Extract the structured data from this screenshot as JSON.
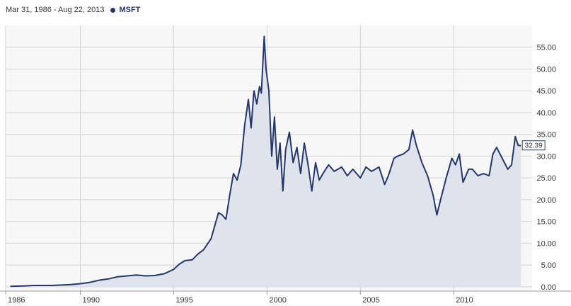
{
  "header": {
    "date_range": "Mar 31, 1986 - Aug 22, 2013",
    "series_name": "MSFT"
  },
  "colors": {
    "line": "#23376b",
    "area": "#dde2ea",
    "grid": "#d3d3d3",
    "plot_bg": "#f7f7f7"
  },
  "chart_data": {
    "type": "area",
    "title": "",
    "xlabel": "",
    "ylabel": "",
    "x_ticks": [
      "1986",
      "1990",
      "1995",
      "2000",
      "2005",
      "2010"
    ],
    "y_ticks": [
      "0.00",
      "5.00",
      "10.00",
      "15.00",
      "20.00",
      "25.00",
      "30.00",
      "35.00",
      "40.00",
      "45.00",
      "50.00",
      "55.00"
    ],
    "ylim": [
      -1,
      60
    ],
    "xlim": [
      1986.0,
      2014.2
    ],
    "last_value_label": "32.39",
    "grid": true,
    "series": [
      {
        "name": "MSFT",
        "x": [
          1986.25,
          1987.0,
          1987.5,
          1988.0,
          1988.5,
          1989.0,
          1989.5,
          1990.0,
          1990.5,
          1991.0,
          1991.5,
          1992.0,
          1992.5,
          1993.0,
          1993.5,
          1994.0,
          1994.5,
          1995.0,
          1995.3,
          1995.6,
          1996.0,
          1996.3,
          1996.6,
          1997.0,
          1997.2,
          1997.4,
          1997.6,
          1997.8,
          1998.0,
          1998.2,
          1998.4,
          1998.6,
          1998.8,
          1999.0,
          1999.15,
          1999.3,
          1999.45,
          1999.6,
          1999.7,
          1999.85,
          1999.95,
          2000.1,
          2000.25,
          2000.4,
          2000.55,
          2000.7,
          2000.85,
          2001.0,
          2001.2,
          2001.4,
          2001.6,
          2001.8,
          2002.0,
          2002.2,
          2002.4,
          2002.6,
          2002.8,
          2003.0,
          2003.3,
          2003.6,
          2004.0,
          2004.3,
          2004.6,
          2005.0,
          2005.3,
          2005.6,
          2006.0,
          2006.3,
          2006.5,
          2006.8,
          2007.0,
          2007.3,
          2007.6,
          2007.8,
          2008.0,
          2008.3,
          2008.6,
          2008.9,
          2009.1,
          2009.3,
          2009.6,
          2009.9,
          2010.1,
          2010.3,
          2010.5,
          2010.8,
          2011.0,
          2011.3,
          2011.6,
          2011.9,
          2012.1,
          2012.3,
          2012.6,
          2012.9,
          2013.1,
          2013.3,
          2013.45,
          2013.6
        ],
        "y": [
          0.1,
          0.2,
          0.3,
          0.3,
          0.3,
          0.4,
          0.5,
          0.7,
          1.0,
          1.5,
          1.8,
          2.3,
          2.5,
          2.7,
          2.5,
          2.6,
          3.0,
          4.0,
          5.2,
          6.0,
          6.2,
          7.5,
          8.5,
          11.0,
          14.0,
          17.0,
          16.5,
          15.5,
          21.0,
          26.0,
          24.5,
          28.0,
          37.0,
          43.0,
          36.5,
          45.0,
          42.0,
          46.0,
          44.5,
          57.5,
          50.0,
          45.0,
          30.0,
          39.0,
          27.0,
          33.0,
          22.0,
          31.5,
          35.5,
          28.5,
          32.0,
          26.0,
          33.0,
          28.0,
          22.0,
          28.5,
          24.5,
          26.0,
          28.0,
          26.5,
          27.5,
          25.5,
          27.0,
          25.0,
          27.5,
          26.5,
          27.5,
          23.5,
          25.5,
          29.5,
          30.0,
          30.5,
          31.5,
          36.0,
          32.5,
          28.5,
          25.5,
          21.0,
          16.5,
          20.0,
          25.0,
          29.5,
          28.0,
          30.5,
          24.0,
          27.0,
          27.0,
          25.5,
          26.0,
          25.5,
          30.5,
          32.0,
          29.5,
          27.0,
          28.0,
          34.5,
          32.5,
          32.39
        ]
      }
    ]
  }
}
